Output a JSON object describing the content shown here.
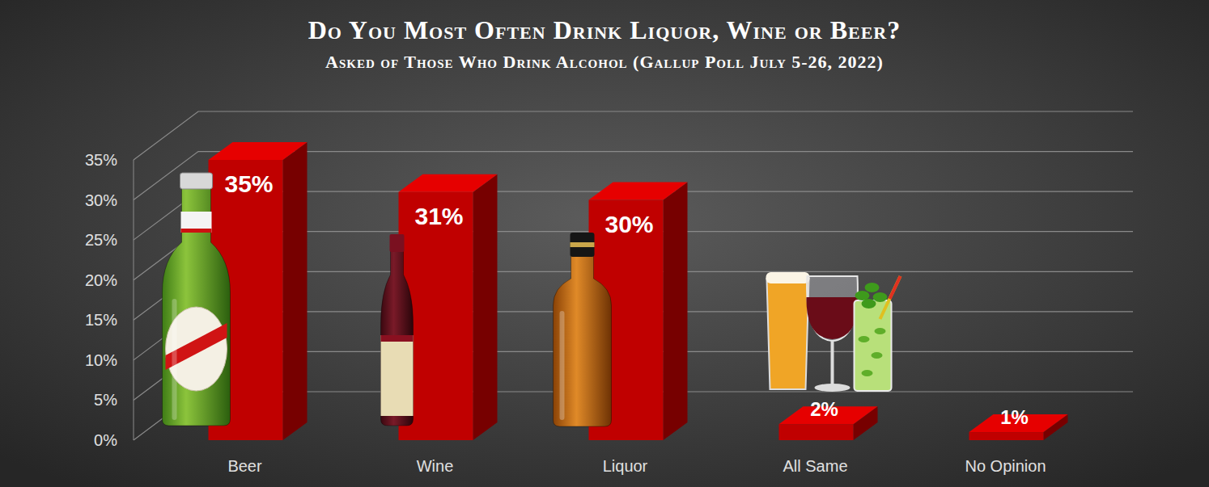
{
  "chart_data": {
    "type": "bar",
    "title": "Do You Most Often Drink Liquor, Wine or Beer?",
    "subtitle": "Asked of Those Who Drink Alcohol (Gallup Poll July 5-26, 2022)",
    "categories": [
      "Beer",
      "Wine",
      "Liquor",
      "All Same",
      "No Opinion"
    ],
    "values": [
      35,
      31,
      30,
      2,
      1
    ],
    "value_labels": [
      "35%",
      "31%",
      "30%",
      "2%",
      "1%"
    ],
    "color": "#c00000",
    "ylim": [
      0,
      35
    ],
    "yticks": [
      {
        "value": 0,
        "label": "0%"
      },
      {
        "value": 5,
        "label": "5%"
      },
      {
        "value": 10,
        "label": "10%"
      },
      {
        "value": 15,
        "label": "15%"
      },
      {
        "value": 20,
        "label": "20%"
      },
      {
        "value": 25,
        "label": "25%"
      },
      {
        "value": 30,
        "label": "30%"
      },
      {
        "value": 35,
        "label": "35%"
      }
    ],
    "grid": true,
    "data_labels": true
  }
}
